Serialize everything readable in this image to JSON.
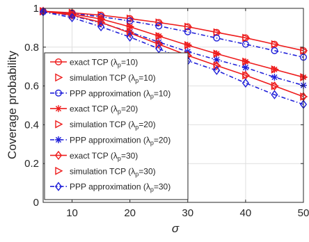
{
  "chart_data": {
    "type": "line",
    "title": "",
    "xlabel": "σ",
    "ylabel": "Coverage probability",
    "xlim": [
      5,
      50
    ],
    "ylim": [
      0,
      1
    ],
    "x_ticks": [
      10,
      20,
      30,
      40,
      50
    ],
    "y_ticks": [
      0,
      0.2,
      0.4,
      0.6,
      0.8,
      1
    ],
    "grid": true,
    "legend_position": "left",
    "x": [
      5,
      10,
      15,
      20,
      25,
      30,
      35,
      40,
      45,
      50
    ],
    "colors": {
      "red": "#ee1c1c",
      "blue": "#1f1fd9"
    },
    "series": [
      {
        "name": "exact TCP (λp=10)",
        "label_main": "exact TCP (λ",
        "label_sub": "p",
        "label_tail": "=10)",
        "color": "#ee1c1c",
        "marker": "circle",
        "dash": "solid",
        "values": [
          0.985,
          0.977,
          0.965,
          0.947,
          0.927,
          0.905,
          0.876,
          0.848,
          0.815,
          0.782
        ]
      },
      {
        "name": "simulation TCP (λp=10)",
        "label_main": "simulation TCP (λ",
        "label_sub": "p",
        "label_tail": "=10)",
        "color": "#ee1c1c",
        "marker": "triangle-right",
        "dash": "none",
        "values": [
          0.985,
          0.977,
          0.965,
          0.947,
          0.927,
          0.905,
          0.876,
          0.848,
          0.815,
          0.782
        ]
      },
      {
        "name": "PPP approximation (λp=10)",
        "label_main": "PPP approximation (λ",
        "label_sub": "p",
        "label_tail": "=10)",
        "color": "#1f1fd9",
        "marker": "circle",
        "dash": "dashdot",
        "values": [
          0.983,
          0.973,
          0.957,
          0.935,
          0.909,
          0.879,
          0.847,
          0.815,
          0.782,
          0.748
        ]
      },
      {
        "name": "exact TCP (λp=20)",
        "label_main": "exact TCP (λ",
        "label_sub": "p",
        "label_tail": "=20)",
        "color": "#ee1c1c",
        "marker": "asterisk",
        "dash": "solid",
        "values": [
          0.985,
          0.971,
          0.945,
          0.905,
          0.857,
          0.81,
          0.766,
          0.725,
          0.685,
          0.645
        ]
      },
      {
        "name": "simulation TCP (λp=20)",
        "label_main": "simulation TCP (λ",
        "label_sub": "p",
        "label_tail": "=20)",
        "color": "#ee1c1c",
        "marker": "triangle-right",
        "dash": "none",
        "values": [
          0.985,
          0.971,
          0.945,
          0.905,
          0.857,
          0.81,
          0.766,
          0.725,
          0.685,
          0.645
        ]
      },
      {
        "name": "PPP approximation (λp=20)",
        "label_main": "PPP approximation (λ",
        "label_sub": "p",
        "label_tail": "=20)",
        "color": "#1f1fd9",
        "marker": "asterisk",
        "dash": "dashdot",
        "values": [
          0.983,
          0.962,
          0.925,
          0.878,
          0.826,
          0.777,
          0.735,
          0.695,
          0.645,
          0.603
        ]
      },
      {
        "name": "exact TCP (λp=30)",
        "label_main": "exact TCP (λ",
        "label_sub": "p",
        "label_tail": "=30)",
        "color": "#ee1c1c",
        "marker": "diamond",
        "dash": "solid",
        "values": [
          0.985,
          0.965,
          0.928,
          0.873,
          0.815,
          0.757,
          0.705,
          0.655,
          0.6,
          0.545
        ]
      },
      {
        "name": "simulation TCP (λp=30)",
        "label_main": "simulation TCP (λ",
        "label_sub": "p",
        "label_tail": "=30)",
        "color": "#ee1c1c",
        "marker": "triangle-right",
        "dash": "none",
        "values": [
          0.985,
          0.965,
          0.928,
          0.873,
          0.815,
          0.757,
          0.705,
          0.655,
          0.6,
          0.545
        ]
      },
      {
        "name": "PPP approximation (λp=30)",
        "label_main": "PPP approximation (λ",
        "label_sub": "p",
        "label_tail": "=30)",
        "color": "#1f1fd9",
        "marker": "diamond",
        "dash": "dashdot",
        "values": [
          0.982,
          0.952,
          0.905,
          0.852,
          0.792,
          0.73,
          0.68,
          0.615,
          0.555,
          0.505
        ]
      }
    ]
  }
}
